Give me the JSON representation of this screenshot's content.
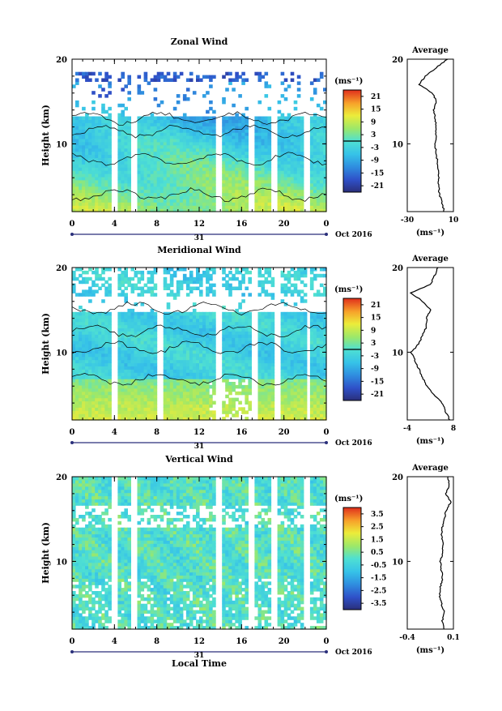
{
  "panels": [
    {
      "id": "zonal",
      "title": "Zonal Wind",
      "ylabel": "Height (km)",
      "xlabel": "",
      "yticks": [
        "20",
        "10"
      ],
      "xticks": [
        "0",
        "4",
        "8",
        "12",
        "16",
        "20",
        "0"
      ],
      "day_label": "31",
      "date_label": "Oct 2016",
      "colorbar": {
        "unit": "(ms⁻¹)",
        "ticks": [
          "21",
          "15",
          "9",
          "3",
          "-3",
          "-9",
          "-15",
          "-21"
        ],
        "range": [
          -21,
          21
        ]
      },
      "avg": {
        "title": "Average",
        "xticks": [
          "-30",
          "10"
        ],
        "xlim": [
          -30,
          10
        ],
        "yticks": [
          "20",
          "10"
        ],
        "unit": "(ms⁻¹)"
      }
    },
    {
      "id": "meridional",
      "title": "Meridional Wind",
      "ylabel": "Height (km)",
      "xlabel": "",
      "yticks": [
        "20",
        "10"
      ],
      "xticks": [
        "0",
        "4",
        "8",
        "12",
        "16",
        "20",
        "0"
      ],
      "day_label": "31",
      "date_label": "Oct 2016",
      "colorbar": {
        "unit": "(ms⁻¹)",
        "ticks": [
          "21",
          "15",
          "9",
          "3",
          "-3",
          "-9",
          "-15",
          "-21"
        ],
        "range": [
          -21,
          21
        ]
      },
      "avg": {
        "title": "Average",
        "xticks": [
          "-4",
          "8"
        ],
        "xlim": [
          -4,
          8
        ],
        "yticks": [
          "20",
          "10"
        ],
        "unit": "(ms⁻¹)"
      }
    },
    {
      "id": "vertical",
      "title": "Vertical Wind",
      "ylabel": "Height (km)",
      "xlabel": "Local Time",
      "yticks": [
        "20",
        "10"
      ],
      "xticks": [
        "0",
        "4",
        "8",
        "12",
        "16",
        "20",
        "0"
      ],
      "day_label": "31",
      "date_label": "Oct 2016",
      "colorbar": {
        "unit": "(ms⁻¹)",
        "ticks": [
          "3.5",
          "2.5",
          "1.5",
          "0.5",
          "-0.5",
          "-1.5",
          "-2.5",
          "-3.5"
        ],
        "range": [
          -3.5,
          3.5
        ]
      },
      "avg": {
        "title": "Average",
        "xticks": [
          "-0.4",
          "0.1"
        ],
        "xlim": [
          -0.4,
          0.1
        ],
        "yticks": [
          "20",
          "10"
        ],
        "unit": "(ms⁻¹)"
      }
    }
  ],
  "chart_data": [
    {
      "type": "heatmap",
      "title": "Zonal Wind",
      "x_axis": "Local Time (h)",
      "xlim": [
        0,
        24
      ],
      "ylim": [
        2,
        20
      ],
      "colormap_range": [
        -21,
        21
      ],
      "data_gaps_hours": [
        4,
        5.8,
        13.8,
        16.8,
        19.2,
        22.2
      ],
      "profile": {
        "heights": [
          2,
          3,
          4,
          5,
          6,
          7,
          8,
          9,
          10,
          11,
          12,
          13,
          14,
          15,
          16,
          17,
          18,
          19,
          20
        ],
        "values": [
          2,
          0,
          -2,
          -3,
          -3,
          -3,
          -4,
          -5,
          -6,
          -5,
          -5,
          -6,
          -7,
          -5,
          -8,
          -20,
          -14,
          -5,
          5
        ]
      }
    },
    {
      "type": "heatmap",
      "title": "Meridional Wind",
      "x_axis": "Local Time (h)",
      "xlim": [
        0,
        24
      ],
      "ylim": [
        2,
        20
      ],
      "colormap_range": [
        -21,
        21
      ],
      "data_gaps_hours": [
        4,
        8.3,
        13.8,
        17.3,
        19.3,
        22.3
      ],
      "profile": {
        "heights": [
          2,
          3,
          4,
          5,
          6,
          7,
          8,
          9,
          10,
          11,
          12,
          13,
          14,
          15,
          16,
          17,
          18,
          19,
          20
        ],
        "values": [
          7,
          6,
          5,
          3,
          1,
          0,
          -1,
          -2,
          -3,
          -1,
          0,
          1,
          1,
          2,
          0,
          -3,
          2,
          3,
          4
        ]
      }
    },
    {
      "type": "heatmap",
      "title": "Vertical Wind",
      "x_axis": "Local Time (h)",
      "xlim": [
        0,
        24
      ],
      "ylim": [
        2,
        20
      ],
      "colormap_range": [
        -3.5,
        3.5
      ],
      "data_gaps_hours": [
        4,
        5.8,
        13.8,
        17.0,
        19.2,
        22.2
      ],
      "profile": {
        "heights": [
          2,
          3,
          4,
          5,
          6,
          7,
          8,
          9,
          10,
          11,
          12,
          13,
          14,
          15,
          16,
          17,
          18,
          19,
          20
        ],
        "values": [
          0.0,
          -0.02,
          0.0,
          -0.03,
          -0.05,
          -0.04,
          -0.02,
          -0.03,
          -0.04,
          -0.02,
          -0.01,
          -0.03,
          -0.02,
          0.0,
          0.02,
          0.07,
          0.02,
          0.05,
          0.04
        ]
      }
    }
  ]
}
